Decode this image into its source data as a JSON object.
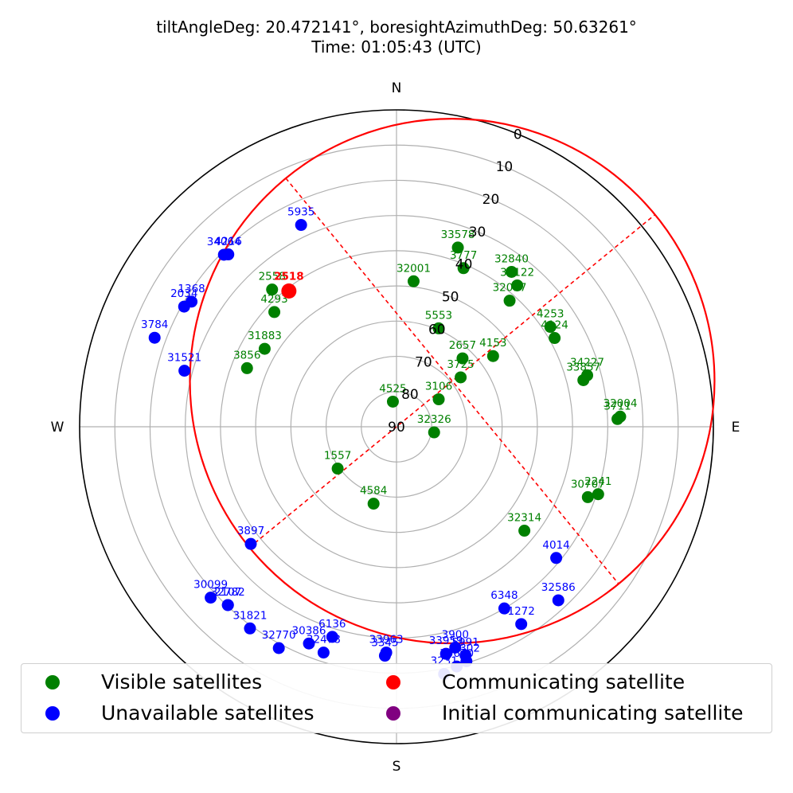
{
  "title": {
    "line1": "tiltAngleDeg: 20.472141°, boresightAzimuthDeg: 50.63261°",
    "line2": "Time: 01:05:43 (UTC)"
  },
  "chart_data": {
    "type": "scatter",
    "projection": "polar (azimuth clockwise from North, radius = 90 - elevation)",
    "elevation_ticks": [
      "0",
      "10",
      "20",
      "30",
      "40",
      "50",
      "60",
      "70",
      "80",
      "90"
    ],
    "directions": {
      "N": "N",
      "E": "E",
      "S": "S",
      "W": "W"
    },
    "colors": {
      "visible": "#008000",
      "unavailable": "#0000ff",
      "communicating": "#ff0000",
      "initial": "#800080",
      "coverage": "#ff0000"
    },
    "coverage": {
      "boresight_azimuth": 50.63,
      "tilt_angle": 20.47,
      "center_zenith": 20.47,
      "radius_deg": 74.5,
      "color": "#ff0000"
    },
    "communicating": {
      "id": "2518",
      "az": 321.6,
      "el": 40.8
    },
    "visible": [
      {
        "id": "33578",
        "az": 18.9,
        "el": 36.2
      },
      {
        "id": "3777",
        "az": 22.9,
        "el": 41.1
      },
      {
        "id": "32840",
        "az": 36.6,
        "el": 35.2
      },
      {
        "id": "32122",
        "az": 40.5,
        "el": 37.2
      },
      {
        "id": "32017",
        "az": 41.9,
        "el": 41.9
      },
      {
        "id": "32001",
        "az": 6.7,
        "el": 48.4
      },
      {
        "id": "5553",
        "az": 23.2,
        "el": 59.6
      },
      {
        "id": "2657",
        "az": 44.0,
        "el": 63.0
      },
      {
        "id": "4153",
        "az": 53.8,
        "el": 56.0
      },
      {
        "id": "3725",
        "az": 52.4,
        "el": 67.0
      },
      {
        "id": "3106",
        "az": 57.0,
        "el": 75.7
      },
      {
        "id": "4253",
        "az": 57.0,
        "el": 37.9
      },
      {
        "id": "4124",
        "az": 60.7,
        "el": 38.5
      },
      {
        "id": "34227",
        "az": 74.9,
        "el": 33.9
      },
      {
        "id": "33857",
        "az": 76.0,
        "el": 35.3
      },
      {
        "id": "32004",
        "az": 87.4,
        "el": 26.4
      },
      {
        "id": "3711",
        "az": 88.0,
        "el": 27.2
      },
      {
        "id": "32326",
        "az": 98.5,
        "el": 79.2
      },
      {
        "id": "2241",
        "az": 108.5,
        "el": 29.6
      },
      {
        "id": "30707",
        "az": 110.2,
        "el": 32.1
      },
      {
        "id": "32314",
        "az": 129.1,
        "el": 43.2
      },
      {
        "id": "4525",
        "az": 351.8,
        "el": 82.8
      },
      {
        "id": "2558",
        "az": 317.8,
        "el": 37.4
      },
      {
        "id": "4293",
        "az": 313.2,
        "el": 42.4
      },
      {
        "id": "31883",
        "az": 300.6,
        "el": 46.5
      },
      {
        "id": "3856",
        "az": 291.4,
        "el": 44.4
      },
      {
        "id": "1557",
        "az": 234.6,
        "el": 69.5
      },
      {
        "id": "4584",
        "az": 196.6,
        "el": 67.2
      }
    ],
    "unavailable": [
      {
        "id": "5935",
        "az": 334.7,
        "el": 26.6
      },
      {
        "id": "4216",
        "az": 315.7,
        "el": 21.6
      },
      {
        "id": "34064",
        "az": 314.9,
        "el": 20.8
      },
      {
        "id": "1368",
        "az": 301.4,
        "el": 21.8
      },
      {
        "id": "2034",
        "az": 299.5,
        "el": 20.7
      },
      {
        "id": "3784",
        "az": 290.2,
        "el": 16.8
      },
      {
        "id": "31521",
        "az": 284.8,
        "el": 27.7
      },
      {
        "id": "3897",
        "az": 231.2,
        "el": 36.9
      },
      {
        "id": "30099",
        "az": 227.4,
        "el": 18.3
      },
      {
        "id": "2107",
        "az": 223.4,
        "el": 20.3
      },
      {
        "id": "32782",
        "az": 223.4,
        "el": 20.3
      },
      {
        "id": "31821",
        "az": 216.0,
        "el": 19.2
      },
      {
        "id": "32770",
        "az": 208.0,
        "el": 18.8
      },
      {
        "id": "30386",
        "az": 202.0,
        "el": 23.6
      },
      {
        "id": "32478",
        "az": 197.9,
        "el": 22.6
      },
      {
        "id": "6136",
        "az": 197.0,
        "el": 27.6
      },
      {
        "id": "33963",
        "az": 182.6,
        "el": 25.8
      },
      {
        "id": "3345",
        "az": 182.9,
        "el": 24.9
      },
      {
        "id": "33959",
        "az": 167.7,
        "el": 24.0
      },
      {
        "id": "3900",
        "az": 165.1,
        "el": 25.1
      },
      {
        "id": "3231",
        "az": 169.1,
        "el": 18.5
      },
      {
        "id": "30670",
        "az": 165.9,
        "el": 19.8
      },
      {
        "id": "4302",
        "az": 163.4,
        "el": 20.5
      },
      {
        "id": "5991",
        "az": 163.2,
        "el": 22.2
      },
      {
        "id": "6348",
        "az": 149.3,
        "el": 30.0
      },
      {
        "id": "1272",
        "az": 147.7,
        "el": 23.7
      },
      {
        "id": "32586",
        "az": 137.0,
        "el": 22.6
      },
      {
        "id": "4014",
        "az": 129.4,
        "el": 31.3
      }
    ],
    "labels": {
      "2107": "2107",
      "32782": "32782",
      "3231": "3231",
      "30670": "30670",
      "4302": "4302",
      "5991": "5991",
      "33959": "33959",
      "3900": "3900",
      "32478": "32478",
      "30386": "30386"
    }
  },
  "legend": {
    "visible": "Visible satellites",
    "communicating": "Communicating satellite",
    "unavailable": "Unavailable satellites",
    "initial": "Initial communicating satellite"
  }
}
